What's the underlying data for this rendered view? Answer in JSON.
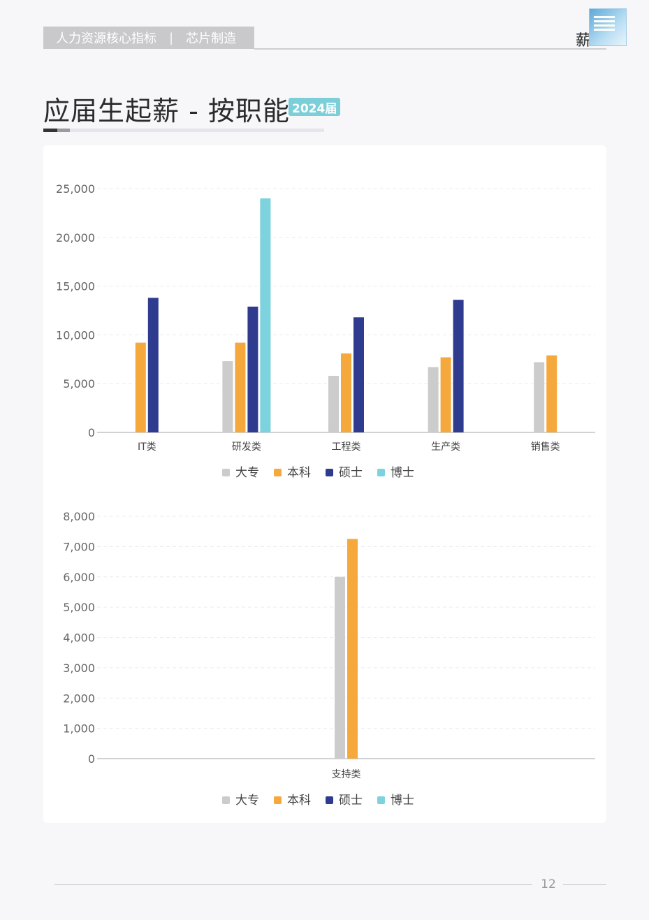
{
  "header": {
    "section": "人力资源核心指标",
    "separator": "|",
    "industry": "芯片制造",
    "brand_text": "薪"
  },
  "page_title": "应届生起薪 - 按职能",
  "year_badge": "2024届",
  "page_number": "12",
  "colors": {
    "dazhuan": "#cccccc",
    "benke": "#f5a83c",
    "shuoshi": "#2f3b8f",
    "boshi": "#7dd3dd"
  },
  "chart_data": [
    {
      "type": "bar",
      "categories": [
        "IT类",
        "研发类",
        "工程类",
        "生产类",
        "销售类"
      ],
      "series": [
        {
          "name": "大专",
          "values": [
            null,
            7300,
            5800,
            6700,
            7200
          ]
        },
        {
          "name": "本科",
          "values": [
            9200,
            9200,
            8100,
            7700,
            7900
          ]
        },
        {
          "name": "硕士",
          "values": [
            13800,
            12900,
            11800,
            13600,
            null
          ]
        },
        {
          "name": "博士",
          "values": [
            null,
            24000,
            null,
            null,
            null
          ]
        }
      ],
      "yticks": [
        "0",
        "5,000",
        "10,000",
        "15,000",
        "20,000",
        "25,000"
      ],
      "ylim": [
        0,
        25000
      ],
      "legend": "bottom",
      "grid": true
    },
    {
      "type": "bar",
      "categories": [
        "支持类"
      ],
      "series": [
        {
          "name": "大专",
          "values": [
            6000
          ]
        },
        {
          "name": "本科",
          "values": [
            7250
          ]
        },
        {
          "name": "硕士",
          "values": [
            null
          ]
        },
        {
          "name": "博士",
          "values": [
            null
          ]
        }
      ],
      "yticks": [
        "0",
        "1,000",
        "2,000",
        "3,000",
        "4,000",
        "5,000",
        "6,000",
        "7,000",
        "8,000"
      ],
      "ylim": [
        0,
        8000
      ],
      "legend": "bottom",
      "grid": true
    }
  ]
}
